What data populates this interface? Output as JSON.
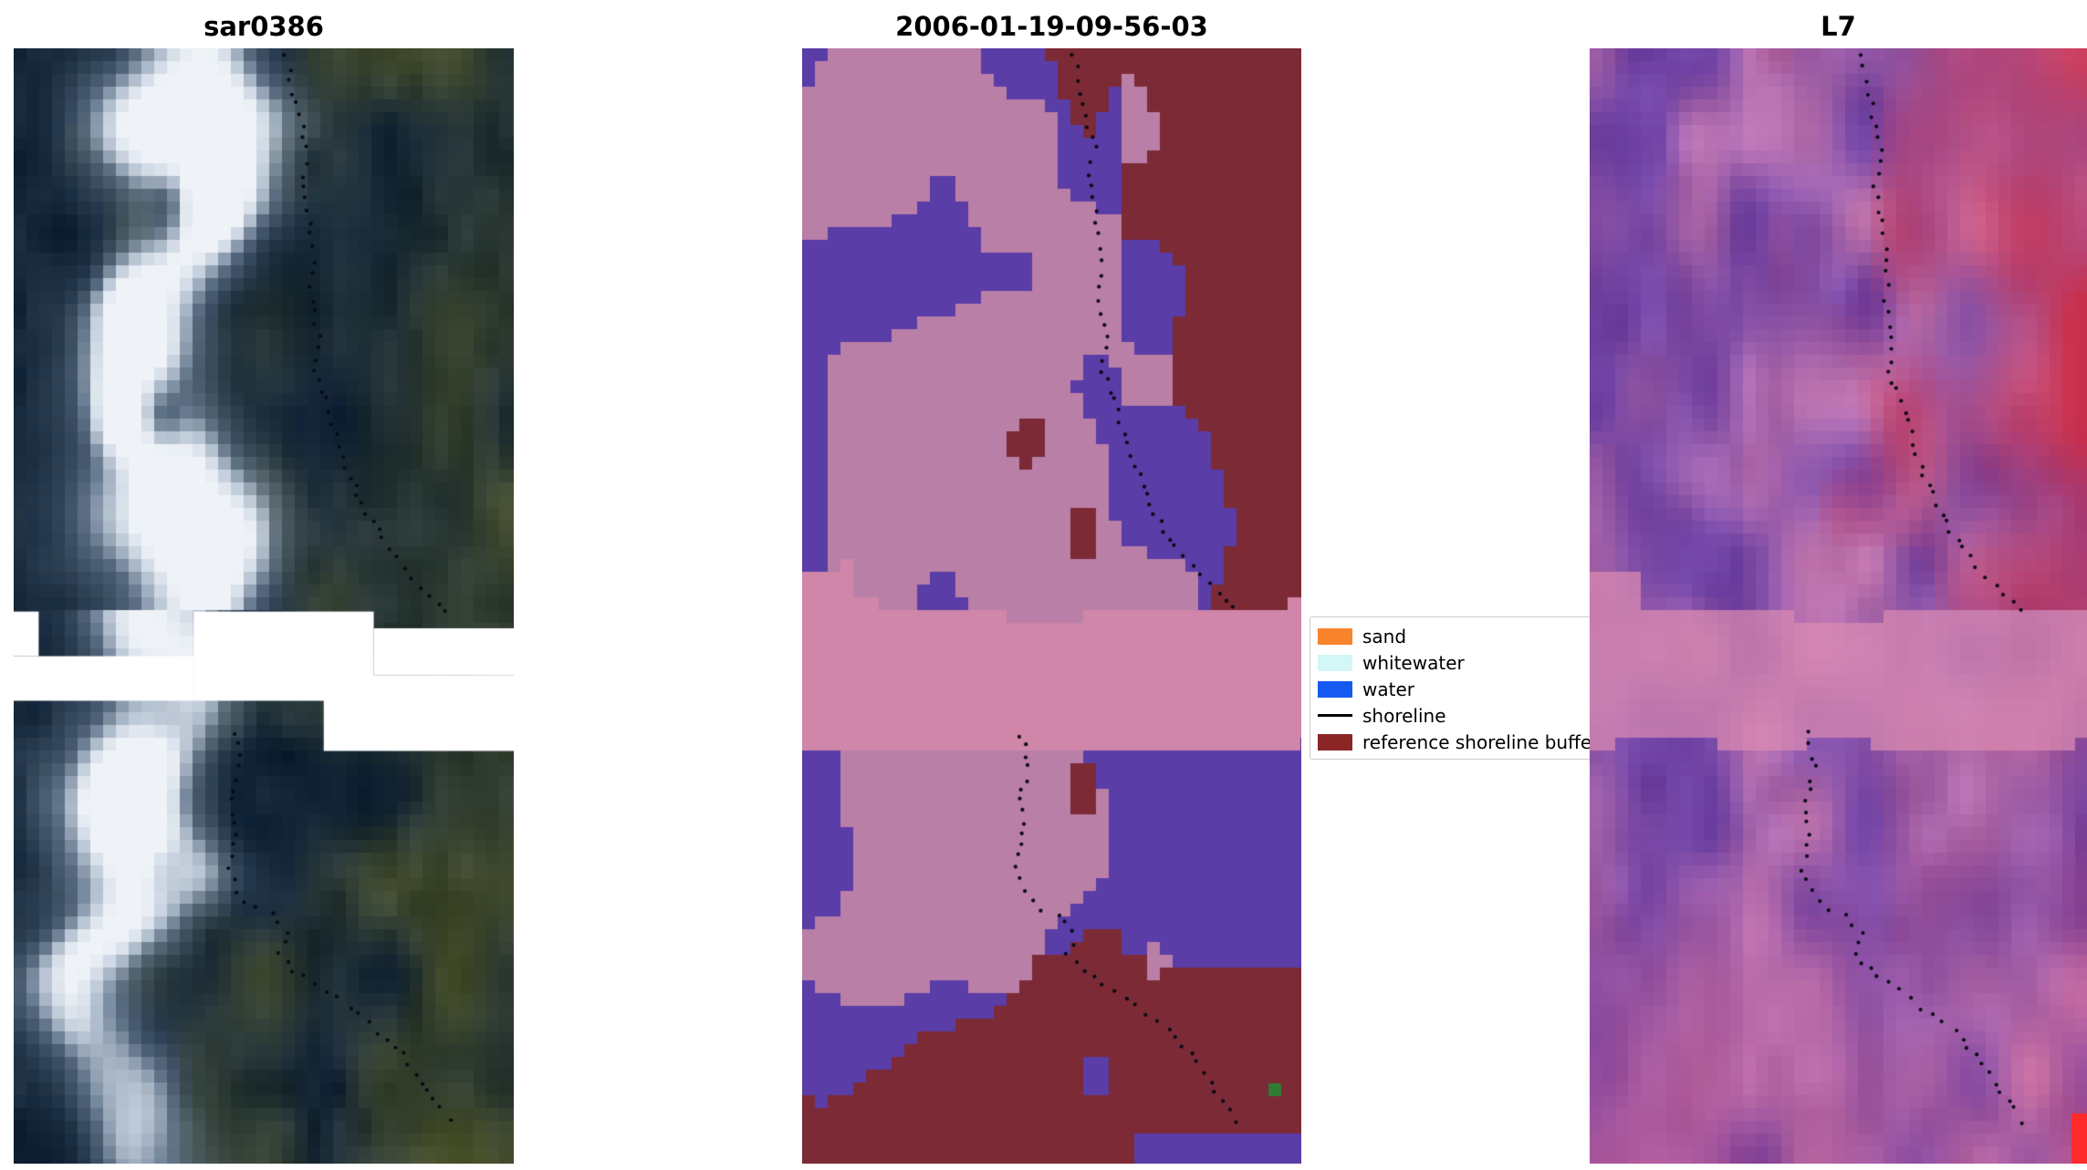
{
  "figure": {
    "background": "#ffffff",
    "description": "Three-panel coastal satellite image comparison with classified map and shoreline overlay"
  },
  "panels": [
    {
      "title": "sar0386",
      "content": "SAR backscatter image: dark navy and olive terrain, bright white curved sand-spit feature on left, white no-data staircase gap across middle, dotted black shoreline overlay",
      "palette": {
        "dark_navy": "#122436",
        "olive": "#48502c",
        "mid_blue": "#96aac3",
        "bright": "#f0f4f8",
        "nodata": "#ffffff"
      }
    },
    {
      "title": "2006-01-19-09-56-03",
      "content": "Classified image: purple class background, pink sand patches, dark red reference shoreline buffer upper-right and bottom, light pink river band across middle, dotted black shoreline, single green pixel near bottom right",
      "palette": {
        "purple": "#5a3da6",
        "pink": "#b97fa6",
        "band_pink": "#cf86a8",
        "dark_red": "#7c2a36",
        "green": "#2e7d32"
      }
    },
    {
      "title": "L7",
      "content": "Landsat 7 false-colour image: purple-magenta terrain, red region upper right, light pink river band across middle, pink lower area, bright red pixel at bottom right corner, dotted black shoreline overlay",
      "palette": {
        "purple": "#6f42a4",
        "mauve": "#c478b0",
        "red": "#d62838",
        "band_pink": "#db8bb1",
        "bottom_pink": "#e15f87",
        "corner_red": "#ff2a2a"
      }
    }
  ],
  "legend": {
    "entries": [
      {
        "label": "sand",
        "color": "#f8842c",
        "swatch": "patch"
      },
      {
        "label": "whitewater",
        "color": "#d3f6f6",
        "swatch": "patch"
      },
      {
        "label": "water",
        "color": "#1659f0",
        "swatch": "patch"
      },
      {
        "label": "shoreline",
        "color": "#000000",
        "swatch": "line"
      },
      {
        "label": "reference shoreline buffer",
        "color": "#8b2626",
        "swatch": "patch"
      }
    ]
  },
  "overlay": {
    "shoreline_marker": "dotted black line",
    "dot_color": "#0a0a14"
  }
}
